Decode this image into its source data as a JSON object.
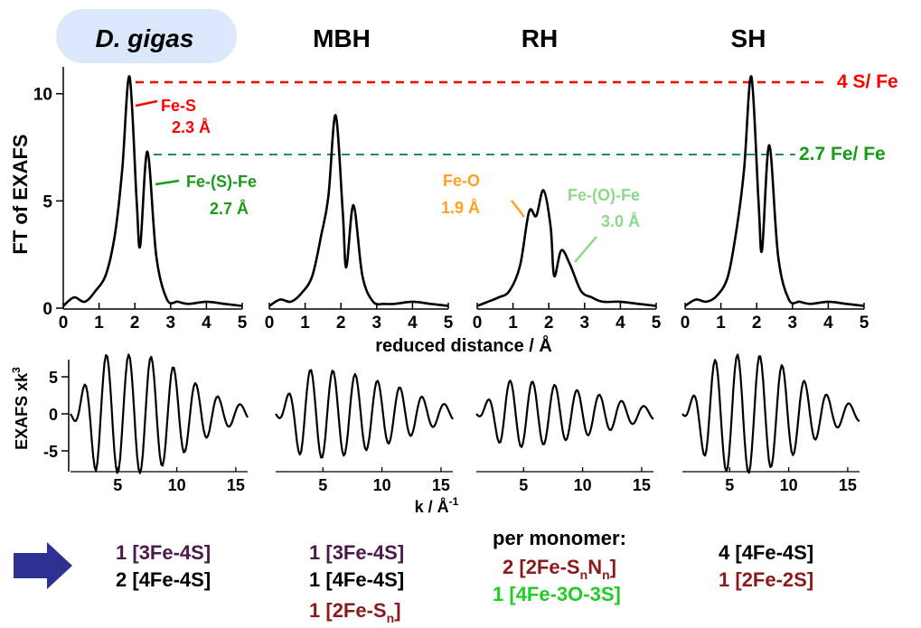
{
  "chart_data": {
    "type": "line",
    "top_panel": {
      "ylabel": "FT of EXAFS",
      "xlabel": "reduced distance / Å",
      "ylim": [
        0,
        11
      ],
      "xlim": [
        0,
        5
      ],
      "y_ticks": [
        "0",
        "5",
        "10"
      ],
      "x_ticks": [
        "0",
        "1",
        "2",
        "3",
        "4",
        "5"
      ],
      "reference_lines": [
        {
          "label": "4 S/ Fe",
          "y": 10.8,
          "color": "#ff0000"
        },
        {
          "label": "2.7 Fe/ Fe",
          "y": 7.3,
          "color": "#2e8b57"
        }
      ]
    },
    "bottom_panel": {
      "ylabel": "EXAFS xk³",
      "ylabel_main": "EXAFS xk",
      "ylabel_sup": "3",
      "xlabel_main": "k / Å",
      "xlabel_sup": "-1",
      "y_ticks": [
        "5",
        "0",
        "-5"
      ],
      "x_ticks": [
        "5",
        "10",
        "15"
      ],
      "ylim": [
        -8,
        8
      ],
      "xlim": [
        1,
        16
      ]
    },
    "samples": [
      {
        "name": "D. gigas",
        "ft": {
          "x": [
            0,
            0.3,
            0.6,
            0.9,
            1.2,
            1.45,
            1.65,
            1.85,
            2.05,
            2.15,
            2.35,
            2.6,
            2.9,
            3.2,
            3.5,
            4,
            4.5,
            5
          ],
          "y": [
            0.1,
            0.5,
            0.3,
            0.8,
            1.6,
            3.5,
            6.5,
            10.8,
            5,
            2.9,
            7.3,
            2.4,
            0.4,
            0.3,
            0.2,
            0.3,
            0.2,
            0.1
          ]
        },
        "exafs": {
          "amplitude": [
            6.5,
            8,
            8,
            8,
            6.5,
            4,
            2,
            1
          ]
        },
        "annotations": [
          {
            "label": "Fe-S",
            "distance": "2.3 Å",
            "color": "#ff0000"
          },
          {
            "label": "Fe-(S)-Fe",
            "distance": "2.7 Å",
            "color": "#1a9a1a"
          }
        ],
        "clusters": [
          {
            "count": "1",
            "formula": "[3Fe-4S]",
            "color": "#4b1a4b"
          },
          {
            "count": "2",
            "formula": "[4Fe-4S]",
            "color": "#000000"
          }
        ]
      },
      {
        "name": "MBH",
        "ft": {
          "x": [
            0,
            0.3,
            0.6,
            0.9,
            1.2,
            1.45,
            1.65,
            1.85,
            2.05,
            2.15,
            2.35,
            2.6,
            2.9,
            3.2,
            3.5,
            4,
            4.5,
            5
          ],
          "y": [
            0.1,
            0.4,
            0.3,
            0.7,
            1.5,
            3.4,
            5.2,
            9,
            4.5,
            1.9,
            4.8,
            1.5,
            0.3,
            0.2,
            0.2,
            0.3,
            0.2,
            0.1
          ]
        },
        "exafs": {
          "amplitude": [
            5,
            6,
            6,
            5.5,
            4.5,
            3.5,
            2,
            1
          ]
        },
        "clusters": [
          {
            "count": "1",
            "formula": "[3Fe-4S]",
            "color": "#4b1a4b"
          },
          {
            "count": "1",
            "formula": "[4Fe-4S]",
            "color": "#000000"
          },
          {
            "count": "1",
            "formula": "[2Fe-S",
            "sub": "n",
            "close": "]",
            "color": "#8b1a1a"
          }
        ]
      },
      {
        "name": "RH",
        "ft": {
          "x": [
            0,
            0.3,
            0.6,
            0.9,
            1.2,
            1.45,
            1.65,
            1.85,
            2.05,
            2.15,
            2.35,
            2.6,
            2.9,
            3.2,
            3.5,
            4,
            4.5,
            5
          ],
          "y": [
            0.1,
            0.3,
            0.5,
            0.8,
            2,
            4.5,
            4.3,
            5.5,
            3.8,
            1.5,
            2.7,
            2,
            0.8,
            0.5,
            0.3,
            0.3,
            0.2,
            0.1
          ]
        },
        "exafs": {
          "amplitude": [
            4,
            4.5,
            4.5,
            4,
            3.2,
            2.5,
            1.5,
            0.8
          ]
        },
        "annotations": [
          {
            "label": "Fe-O",
            "distance": "1.9 Å",
            "color": "#ffa020"
          },
          {
            "label": "Fe-(O)-Fe",
            "distance": "3.0 Å",
            "color": "#8cd98c"
          }
        ],
        "per_monomer_label": "per monomer:",
        "clusters": [
          {
            "count": "2",
            "formula": "[2Fe-S",
            "sub": "n",
            "mid": "N",
            "sub2": "n",
            "close": "]",
            "color": "#8b1a1a"
          },
          {
            "count": "1",
            "formula": "[4Fe-3O-3S]",
            "color": "#22cc22"
          }
        ]
      },
      {
        "name": "SH",
        "ft": {
          "x": [
            0,
            0.3,
            0.6,
            0.9,
            1.2,
            1.45,
            1.65,
            1.85,
            2.05,
            2.15,
            2.35,
            2.6,
            2.9,
            3.2,
            3.5,
            4,
            4.5,
            5
          ],
          "y": [
            0.1,
            0.4,
            0.3,
            0.6,
            1.5,
            3.8,
            6.5,
            10.8,
            5,
            2.7,
            7.6,
            2.4,
            0.4,
            0.3,
            0.2,
            0.3,
            0.2,
            0.1
          ]
        },
        "exafs": {
          "amplitude": [
            5,
            7,
            8,
            8,
            6.5,
            4,
            2,
            1
          ]
        },
        "clusters": [
          {
            "count": "4",
            "formula": "[4Fe-4S]",
            "color": "#000000"
          },
          {
            "count": "1",
            "formula": "[2Fe-2S]",
            "color": "#8b1a1a"
          }
        ]
      }
    ]
  },
  "colors": {
    "title_pill": "#dbe8fb",
    "arrow": "#2e3192",
    "red": "#ff0000",
    "green": "#2e8b57"
  }
}
